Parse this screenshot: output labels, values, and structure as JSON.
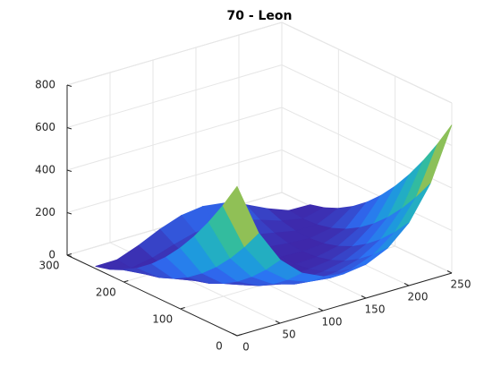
{
  "chart_data": {
    "type": "surface",
    "title": "70 - Leon",
    "x": [
      0,
      25,
      50,
      75,
      100,
      125,
      150,
      175,
      200,
      225,
      250
    ],
    "y": [
      0,
      25,
      50,
      75,
      100,
      125,
      150,
      175,
      200,
      225,
      250
    ],
    "z": [
      [
        701.8,
        454.0,
        298.3,
        206.8,
        159.7,
        145.0,
        158.7,
        204.9,
        295.4,
        450.1,
        697.0
      ],
      [
        580.8,
        357.9,
        221.5,
        143.9,
        105.1,
        93.2,
        104.1,
        142.0,
        218.6,
        354.0,
        576.0
      ],
      [
        471.4,
        273.3,
        156.3,
        92.5,
        62.0,
        52.8,
        61.1,
        90.6,
        153.4,
        269.5,
        466.6
      ],
      [
        373.5,
        200.3,
        102.6,
        52.7,
        30.4,
        24.0,
        29.5,
        50.7,
        99.8,
        196.5,
        368.7
      ],
      [
        287.1,
        138.8,
        60.5,
        24.3,
        10.4,
        6.8,
        9.4,
        22.4,
        57.6,
        134.9,
        282.3
      ],
      [
        212.2,
        88.8,
        29.8,
        7.5,
        1.9,
        1.0,
        0.9,
        5.6,
        27.0,
        84.9,
        207.4
      ],
      [
        148.8,
        50.3,
        10.7,
        2.2,
        4.9,
        6.8,
        3.9,
        0.3,
        7.8,
        46.5,
        144.0
      ],
      [
        97.0,
        23.3,
        3.1,
        8.4,
        19.4,
        24.0,
        18.4,
        6.5,
        0.2,
        19.5,
        92.2
      ],
      [
        56.7,
        7.9,
        7.0,
        26.2,
        45.4,
        52.8,
        44.5,
        24.2,
        4.1,
        4.1,
        51.9
      ],
      [
        27.9,
        4.0,
        22.5,
        55.4,
        83.0,
        93.2,
        82.0,
        53.5,
        19.6,
        0.2,
        23.1
      ],
      [
        10.6,
        11.6,
        49.4,
        96.2,
        132.0,
        145.0,
        131.1,
        94.3,
        46.5,
        7.8,
        5.8
      ]
    ],
    "colormap": [
      "#3e26a8",
      "#2d6ff5",
      "#1aa6d6",
      "#33bc9e",
      "#b2c23b",
      "#f9fb15"
    ],
    "xlim": [
      0,
      250
    ],
    "ylim": [
      0,
      300
    ],
    "zlim": [
      0,
      800
    ],
    "xticks": [
      0,
      50,
      100,
      150,
      200,
      250
    ],
    "yticks": [
      0,
      100,
      200,
      300
    ],
    "zticks": [
      0,
      200,
      400,
      600,
      800
    ],
    "grid": true
  }
}
